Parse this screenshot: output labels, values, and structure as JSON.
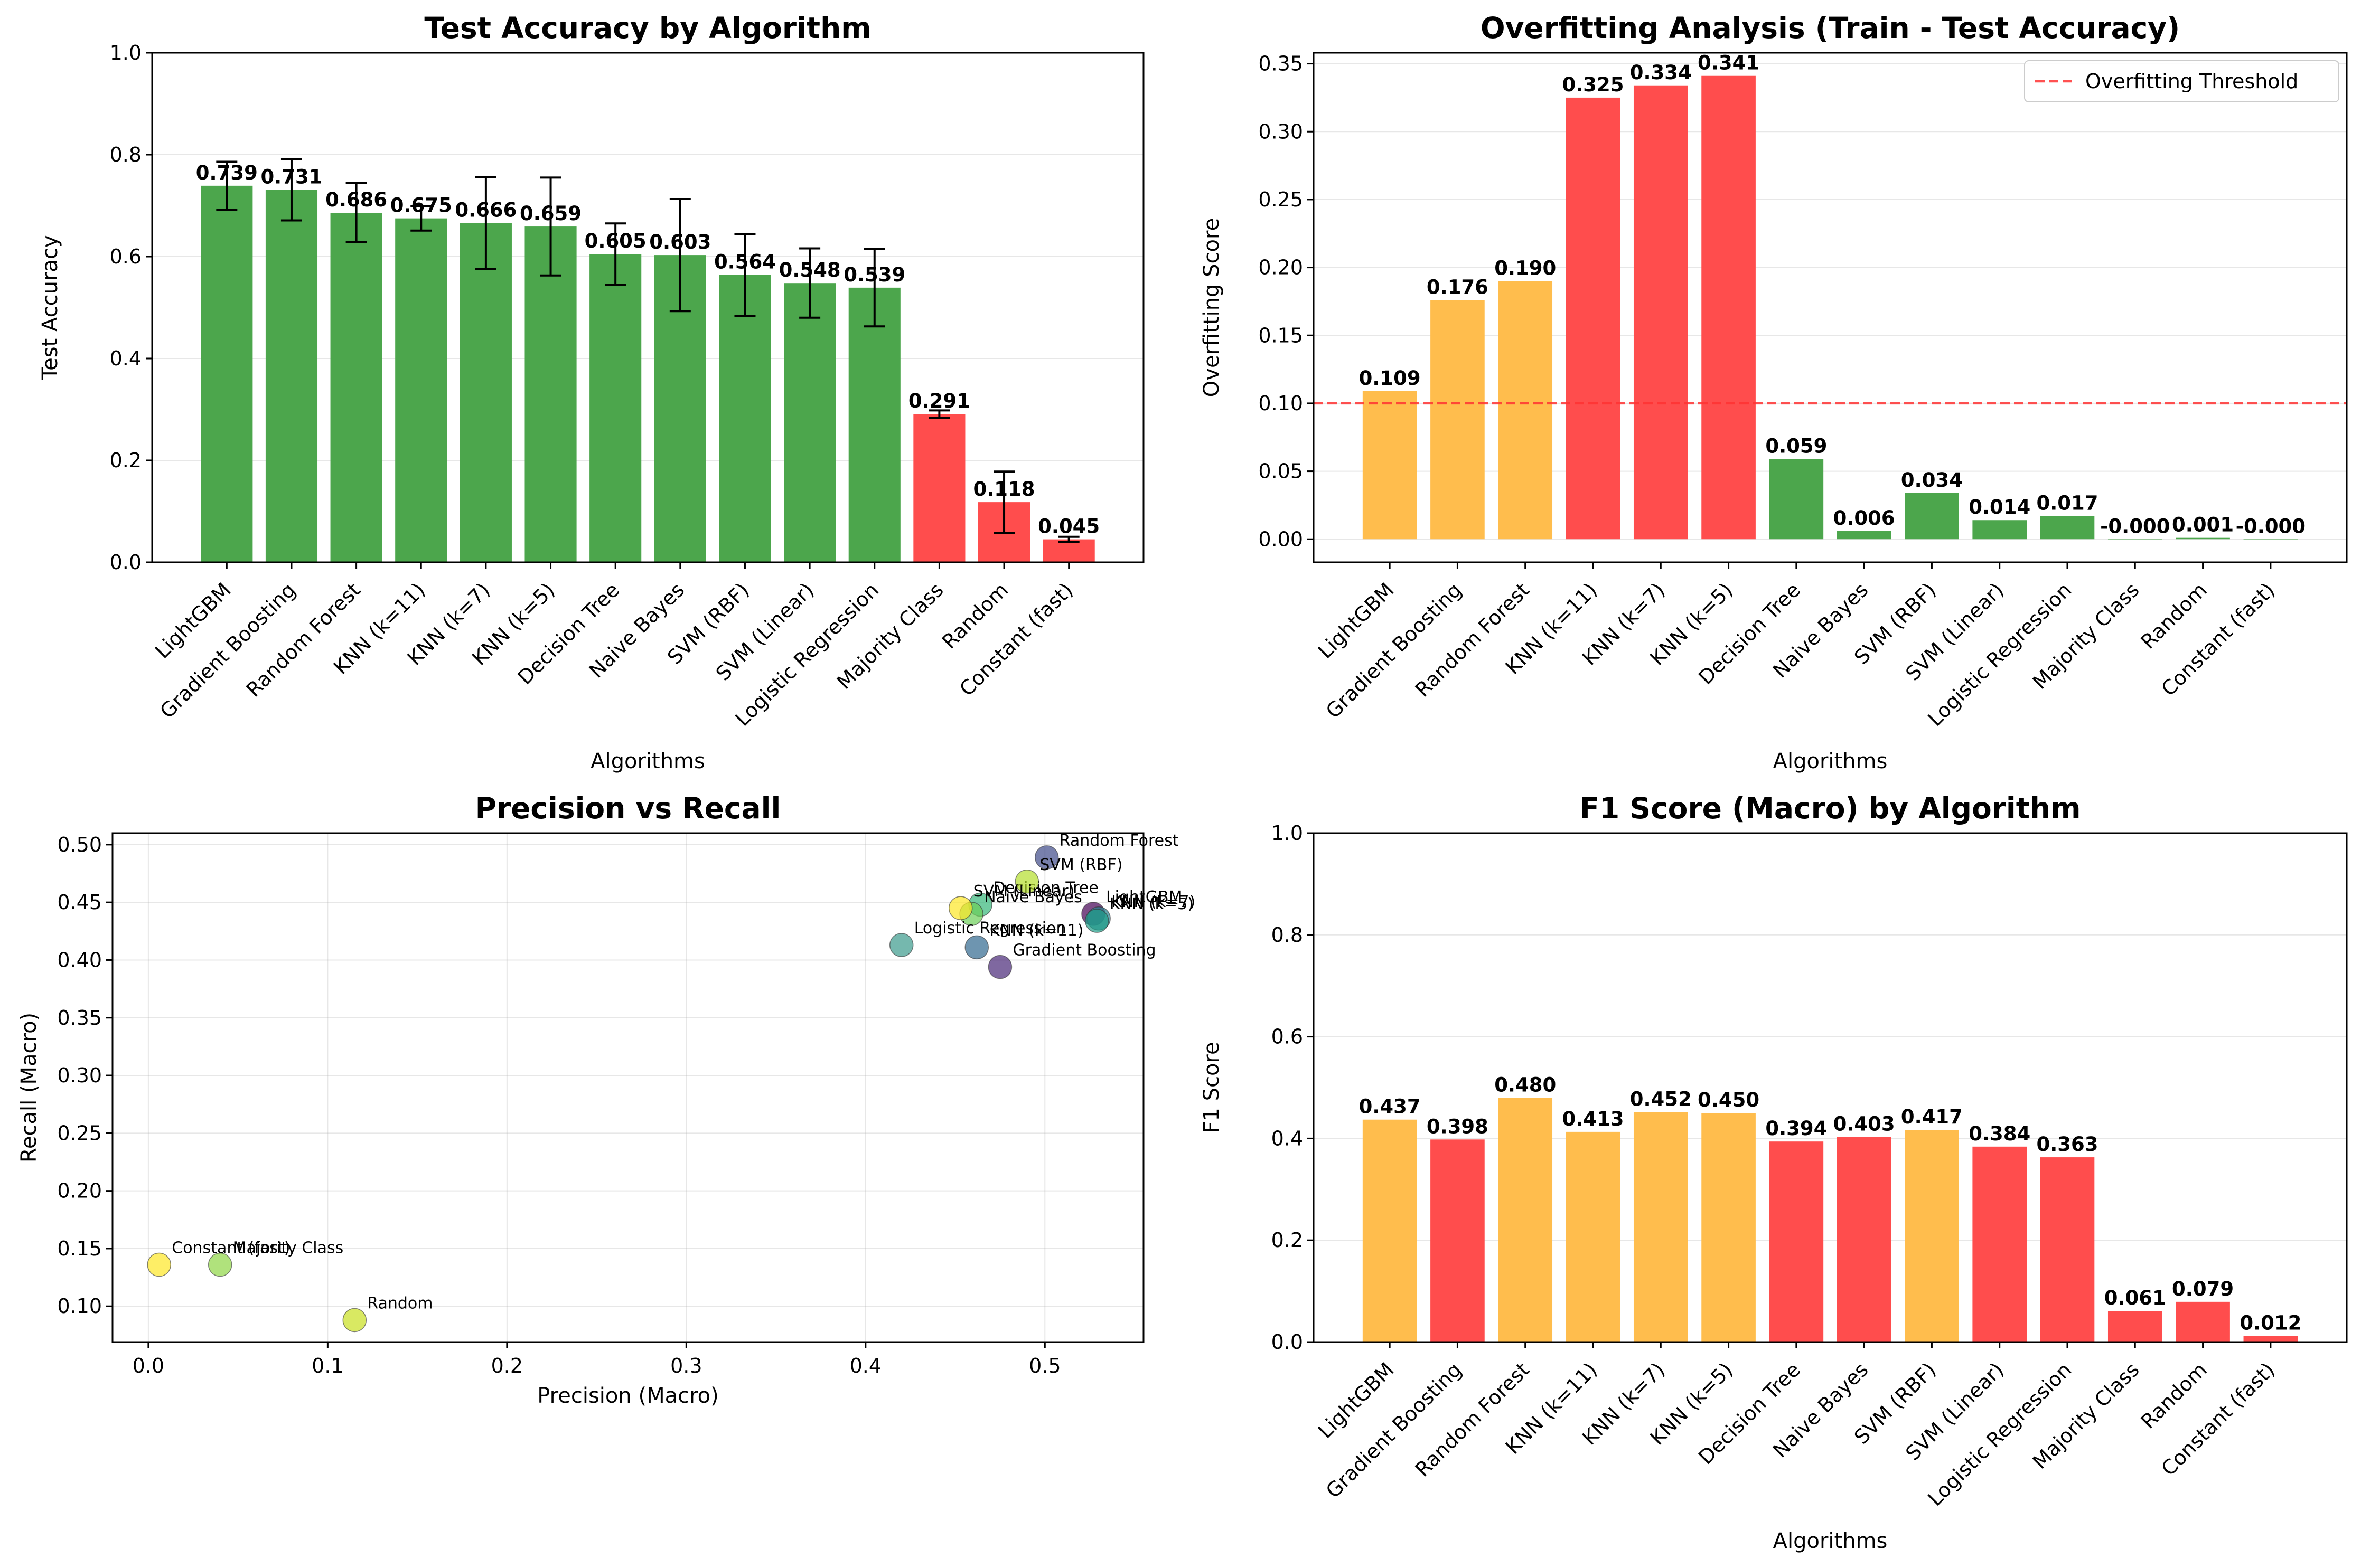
{
  "colors": {
    "good": "#4CA64C",
    "bad": "#FF4D4D",
    "warn": "#FFBD4D",
    "threshold": "#FF3333",
    "errorbar": "#000000"
  },
  "chart_data": [
    {
      "type": "bar",
      "title": "Test Accuracy by Algorithm",
      "xlabel": "Algorithms",
      "ylabel": "Test Accuracy",
      "ylim": [
        0,
        1.0
      ],
      "yticks": [
        "0.0",
        "0.2",
        "0.4",
        "0.6",
        "0.8",
        "1.0"
      ],
      "grid": true,
      "categories": [
        "LightGBM",
        "Gradient Boosting",
        "Random Forest",
        "KNN (k=11)",
        "KNN (k=7)",
        "KNN (k=5)",
        "Decision Tree",
        "Naive Bayes",
        "SVM (RBF)",
        "SVM (Linear)",
        "Logistic Regression",
        "Majority Class",
        "Random",
        "Constant (fast)"
      ],
      "values": [
        0.739,
        0.731,
        0.686,
        0.675,
        0.666,
        0.659,
        0.605,
        0.603,
        0.564,
        0.548,
        0.539,
        0.291,
        0.118,
        0.045
      ],
      "value_labels": [
        "0.739",
        "0.731",
        "0.686",
        "0.675",
        "0.666",
        "0.659",
        "0.605",
        "0.603",
        "0.564",
        "0.548",
        "0.539",
        "0.291",
        "0.118",
        "0.045"
      ],
      "errors": [
        0.047,
        0.06,
        0.058,
        0.024,
        0.09,
        0.096,
        0.06,
        0.11,
        0.08,
        0.068,
        0.076,
        0.007,
        0.06,
        0.005
      ],
      "bar_colors": [
        "good",
        "good",
        "good",
        "good",
        "good",
        "good",
        "good",
        "good",
        "good",
        "good",
        "good",
        "bad",
        "bad",
        "bad"
      ]
    },
    {
      "type": "bar",
      "title": "Overfitting Analysis (Train - Test Accuracy)",
      "xlabel": "Algorithms",
      "ylabel": "Overfitting Score",
      "ylim": [
        -0.017,
        0.358
      ],
      "yticks": [
        "0.00",
        "0.05",
        "0.10",
        "0.15",
        "0.20",
        "0.25",
        "0.30",
        "0.35"
      ],
      "grid": true,
      "categories": [
        "LightGBM",
        "Gradient Boosting",
        "Random Forest",
        "KNN (k=11)",
        "KNN (k=7)",
        "KNN (k=5)",
        "Decision Tree",
        "Naive Bayes",
        "SVM (RBF)",
        "SVM (Linear)",
        "Logistic Regression",
        "Majority Class",
        "Random",
        "Constant (fast)"
      ],
      "values": [
        0.109,
        0.176,
        0.19,
        0.325,
        0.334,
        0.341,
        0.059,
        0.006,
        0.034,
        0.014,
        0.017,
        0.0,
        0.001,
        0.0
      ],
      "value_labels": [
        "0.109",
        "0.176",
        "0.190",
        "0.325",
        "0.334",
        "0.341",
        "0.059",
        "0.006",
        "0.034",
        "0.014",
        "0.017",
        "-0.000",
        "0.001",
        "-0.000"
      ],
      "bar_colors": [
        "warn",
        "warn",
        "warn",
        "bad",
        "bad",
        "bad",
        "good",
        "good",
        "good",
        "good",
        "good",
        "good",
        "good",
        "good"
      ],
      "threshold": 0.1,
      "legend": {
        "label": "Overfitting Threshold",
        "placement": "top-right"
      }
    },
    {
      "type": "scatter",
      "title": "Precision vs Recall",
      "xlabel": "Precision (Macro)",
      "ylabel": "Recall (Macro)",
      "xlim": [
        -0.02,
        0.555
      ],
      "ylim": [
        0.069,
        0.51
      ],
      "xticks": [
        "0.0",
        "0.1",
        "0.2",
        "0.3",
        "0.4",
        "0.5"
      ],
      "yticks": [
        "0.10",
        "0.15",
        "0.20",
        "0.25",
        "0.30",
        "0.35",
        "0.40",
        "0.45",
        "0.50"
      ],
      "grid": true,
      "points": [
        {
          "label": "LightGBM",
          "x": 0.527,
          "y": 0.44,
          "color": "#440154"
        },
        {
          "label": "Gradient Boosting",
          "x": 0.475,
          "y": 0.394,
          "color": "#482878"
        },
        {
          "label": "Random Forest",
          "x": 0.501,
          "y": 0.489,
          "color": "#3E4A89"
        },
        {
          "label": "KNN (k=11)",
          "x": 0.462,
          "y": 0.411,
          "color": "#31688E"
        },
        {
          "label": "KNN (k=7)",
          "x": 0.53,
          "y": 0.436,
          "color": "#26828E"
        },
        {
          "label": "KNN (k=5)",
          "x": 0.529,
          "y": 0.434,
          "color": "#1F9E89"
        },
        {
          "label": "Decision Tree",
          "x": 0.464,
          "y": 0.448,
          "color": "#35B779"
        },
        {
          "label": "Naive Bayes",
          "x": 0.459,
          "y": 0.44,
          "color": "#6CCE59"
        },
        {
          "label": "SVM (RBF)",
          "x": 0.49,
          "y": 0.468,
          "color": "#B4DE2C"
        },
        {
          "label": "SVM (Linear)",
          "x": 0.453,
          "y": 0.445,
          "color": "#FDE725"
        },
        {
          "label": "Logistic Regression",
          "x": 0.42,
          "y": 0.413,
          "color": "#3B9A8C"
        },
        {
          "label": "Majority Class",
          "x": 0.04,
          "y": 0.136,
          "color": "#8ED645"
        },
        {
          "label": "Random",
          "x": 0.115,
          "y": 0.088,
          "color": "#C9E020"
        },
        {
          "label": "Constant (fast)",
          "x": 0.006,
          "y": 0.136,
          "color": "#FDE725"
        }
      ]
    },
    {
      "type": "bar",
      "title": "F1 Score (Macro) by Algorithm",
      "xlabel": "Algorithms",
      "ylabel": "F1 Score",
      "ylim": [
        0,
        1.0
      ],
      "yticks": [
        "0.0",
        "0.2",
        "0.4",
        "0.6",
        "0.8",
        "1.0"
      ],
      "grid": true,
      "categories": [
        "LightGBM",
        "Gradient Boosting",
        "Random Forest",
        "KNN (k=11)",
        "KNN (k=7)",
        "KNN (k=5)",
        "Decision Tree",
        "Naive Bayes",
        "SVM (RBF)",
        "SVM (Linear)",
        "Logistic Regression",
        "Majority Class",
        "Random",
        "Constant (fast)"
      ],
      "values": [
        0.437,
        0.398,
        0.48,
        0.413,
        0.452,
        0.45,
        0.394,
        0.403,
        0.417,
        0.384,
        0.363,
        0.061,
        0.079,
        0.012
      ],
      "value_labels": [
        "0.437",
        "0.398",
        "0.480",
        "0.413",
        "0.452",
        "0.450",
        "0.394",
        "0.403",
        "0.417",
        "0.384",
        "0.363",
        "0.061",
        "0.079",
        "0.012"
      ],
      "bar_colors": [
        "warn",
        "bad",
        "warn",
        "warn",
        "warn",
        "warn",
        "bad",
        "bad",
        "warn",
        "bad",
        "bad",
        "bad",
        "bad",
        "bad"
      ]
    }
  ]
}
